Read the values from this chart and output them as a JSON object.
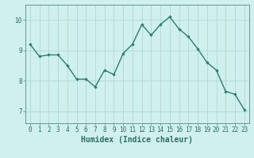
{
  "xlabel": "Humidex (Indice chaleur)",
  "x": [
    0,
    1,
    2,
    3,
    4,
    5,
    6,
    7,
    8,
    9,
    10,
    11,
    12,
    13,
    14,
    15,
    16,
    17,
    18,
    19,
    20,
    21,
    22,
    23
  ],
  "y": [
    9.2,
    8.8,
    8.85,
    8.85,
    8.5,
    8.05,
    8.05,
    7.8,
    8.35,
    8.2,
    8.9,
    9.2,
    9.85,
    9.5,
    9.85,
    10.1,
    9.7,
    9.45,
    9.05,
    8.6,
    8.35,
    7.65,
    7.55,
    7.05
  ],
  "line_color": "#2e7d6e",
  "marker": "D",
  "marker_size": 1.8,
  "line_width": 1.0,
  "bg_color": "#cff0ec",
  "grid_color": "#b0d8d2",
  "tick_color": "#2e6e64",
  "yticks": [
    7,
    8,
    9,
    10
  ],
  "ylim": [
    6.6,
    10.5
  ],
  "xlim": [
    -0.5,
    23.5
  ],
  "xticks": [
    0,
    1,
    2,
    3,
    4,
    5,
    6,
    7,
    8,
    9,
    10,
    11,
    12,
    13,
    14,
    15,
    16,
    17,
    18,
    19,
    20,
    21,
    22,
    23
  ],
  "tick_fontsize": 5.5,
  "xlabel_fontsize": 7.0,
  "axis_color": "#5a9e94"
}
